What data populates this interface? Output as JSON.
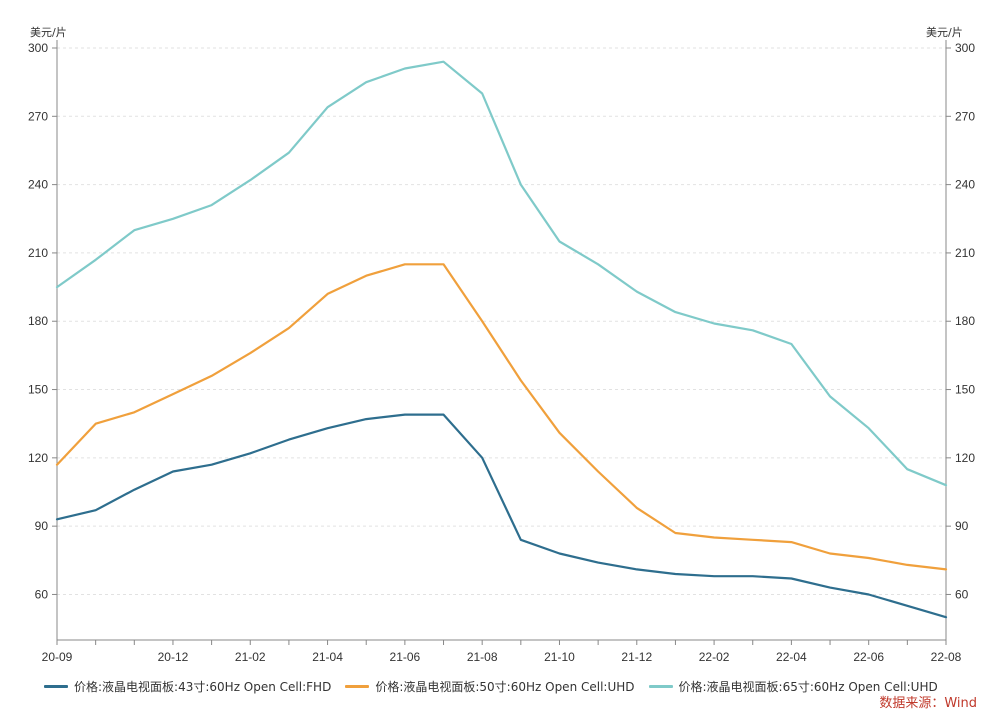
{
  "chart_data": {
    "type": "line",
    "y_unit_left": "美元/片",
    "y_unit_right": "美元/片",
    "ylim": [
      40,
      300
    ],
    "yticks": [
      60,
      90,
      120,
      150,
      180,
      210,
      240,
      270,
      300
    ],
    "grid": "horizontal dashed",
    "legend_position": "bottom",
    "x": [
      "20-09",
      "20-10",
      "20-11",
      "20-12",
      "21-01",
      "21-02",
      "21-03",
      "21-04",
      "21-05",
      "21-06",
      "21-07",
      "21-08",
      "21-09",
      "21-10",
      "21-11",
      "21-12",
      "22-01",
      "22-02",
      "22-03",
      "22-04",
      "22-05",
      "22-06",
      "22-07",
      "22-08"
    ],
    "xtick_labels": [
      "20-09",
      "20-12",
      "21-02",
      "21-04",
      "21-06",
      "21-08",
      "21-10",
      "21-12",
      "22-02",
      "22-04",
      "22-06",
      "22-08"
    ],
    "series": [
      {
        "name": "价格:液晶电视面板:43寸:60Hz Open Cell:FHD",
        "color": "#2e6e8e",
        "values": [
          93,
          97,
          106,
          114,
          117,
          122,
          128,
          133,
          137,
          139,
          139,
          120,
          84,
          78,
          74,
          71,
          69,
          68,
          68,
          67,
          63,
          60,
          55,
          50
        ]
      },
      {
        "name": "价格:液晶电视面板:50寸:60Hz Open Cell:UHD",
        "color": "#f0a03c",
        "values": [
          117,
          135,
          140,
          148,
          156,
          166,
          177,
          192,
          200,
          205,
          205,
          180,
          154,
          131,
          114,
          98,
          87,
          85,
          84,
          83,
          78,
          76,
          73,
          71
        ]
      },
      {
        "name": "价格:液晶电视面板:65寸:60Hz Open Cell:UHD",
        "color": "#7fcac9",
        "values": [
          195,
          207,
          220,
          225,
          231,
          242,
          254,
          274,
          285,
          291,
          294,
          280,
          240,
          215,
          205,
          193,
          184,
          179,
          176,
          170,
          147,
          133,
          115,
          108
        ]
      }
    ],
    "source_note": "数据来源：Wind"
  }
}
